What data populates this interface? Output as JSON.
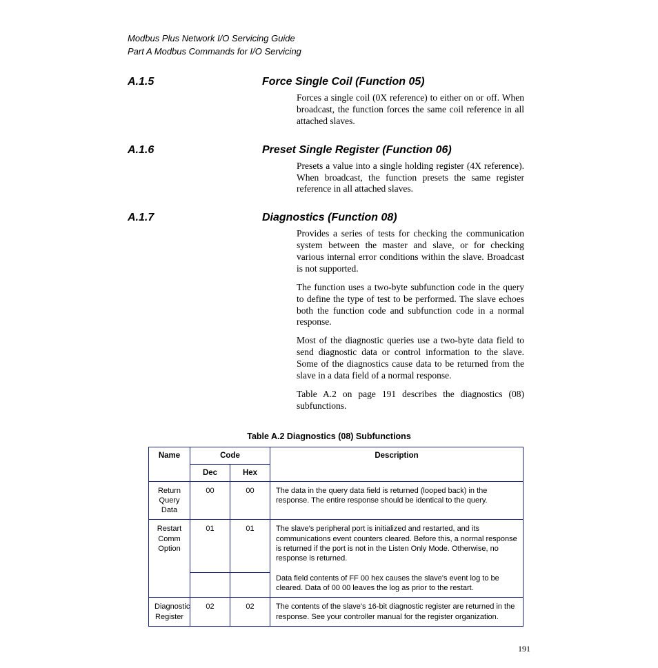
{
  "header": {
    "book_title": "Modbus Plus Network I/O Servicing Guide",
    "chapter": "Part A  Modbus Commands for I/O Servicing"
  },
  "sections": [
    {
      "num": "A.1.5",
      "title": "Force Single Coil (Function 05)",
      "paras": [
        "Forces a single coil (0X reference) to either on or off. When broadcast, the function forces the same coil reference in all attached slaves."
      ]
    },
    {
      "num": "A.1.6",
      "title": "Preset Single Register (Function 06)",
      "paras": [
        "Presets a value into a single holding register (4X reference). When broadcast, the function presets the same register reference in all attached slaves."
      ]
    },
    {
      "num": "A.1.7",
      "title": "Diagnostics (Function 08)",
      "paras": [
        "Provides a series of tests for checking the communication system between the master and slave, or for checking various internal error conditions within the slave. Broadcast is not supported.",
        "The function uses a two-byte subfunction code in the query to define the type of test to be performed. The slave echoes both the function code and subfunction code in a normal response.",
        "Most of the diagnostic queries use a two-byte data field to send diagnostic data or control information to the slave. Some of the diagnostics cause data to be returned from the slave in a data field of a normal response.",
        "Table A.2 on page 191 describes the diagnostics (08) subfunctions."
      ]
    }
  ],
  "table": {
    "caption": "Table A.2  Diagnostics (08) Subfunctions",
    "headers": {
      "name": "Name",
      "code": "Code",
      "dec": "Dec",
      "hex": "Hex",
      "desc": "Description"
    },
    "rows": [
      {
        "name": "Return Query Data",
        "dec": "00",
        "hex": "00",
        "desc": "The data in the query data field is returned (looped back) in the response. The entire response should be identical to the query.",
        "rowspan": 1
      },
      {
        "name": "Restart Comm Option",
        "dec": "01",
        "hex": "01",
        "desc_top": "The slave's peripheral port is initialized and restarted, and its communications event counters cleared. Before this, a normal response is returned if the port is not in the Listen Only Mode. Otherwise, no response is returned.",
        "dec2": "",
        "hex2": "",
        "desc_bot": "Data field contents of FF 00 hex causes the slave's event log to be cleared. Data of 00 00 leaves the log as prior to the restart.",
        "rowspan": 2
      },
      {
        "name": "Diagnostic Register",
        "dec": "02",
        "hex": "02",
        "desc": "The contents of the slave's 16-bit diagnostic register are returned in the response. See your controller manual for the register organization.",
        "rowspan": 1
      }
    ]
  },
  "page_number": "191",
  "colors": {
    "border": "#1a237e",
    "text": "#000000",
    "background": "#ffffff"
  }
}
